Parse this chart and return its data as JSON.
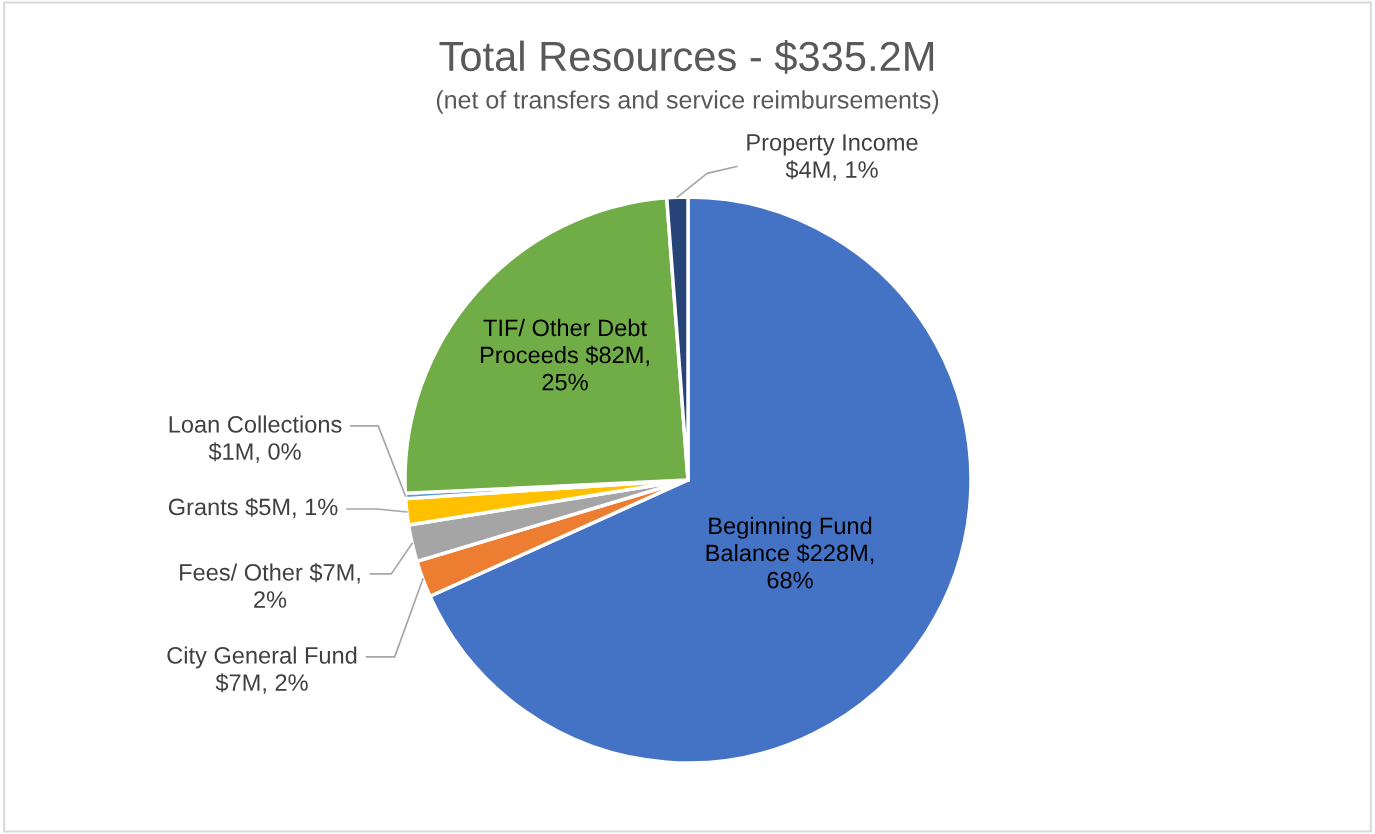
{
  "chart_data": {
    "type": "pie",
    "title": "Total Resources - $335.2M",
    "subtitle": "(net of transfers and service reimbursements)",
    "categories": [
      "Beginning Fund Balance",
      "City General Fund",
      "Fees/ Other",
      "Grants",
      "Loan Collections",
      "TIF/ Other Debt Proceeds",
      "Property Income"
    ],
    "values": [
      228000000,
      7000000,
      7000000,
      5000000,
      1000000,
      82000000,
      4000000
    ],
    "value_labels": [
      "$228M, 68%",
      "$7M, 2%",
      "$7M, 2%",
      "$5M, 1%",
      "$1M, 0%",
      "$82M, 25%",
      "$4M, 1%"
    ],
    "colors": [
      "#4472c4",
      "#ed7d31",
      "#a5a5a5",
      "#ffc000",
      "#5b9bd5",
      "#70ad47",
      "#264478"
    ],
    "legend": false
  }
}
